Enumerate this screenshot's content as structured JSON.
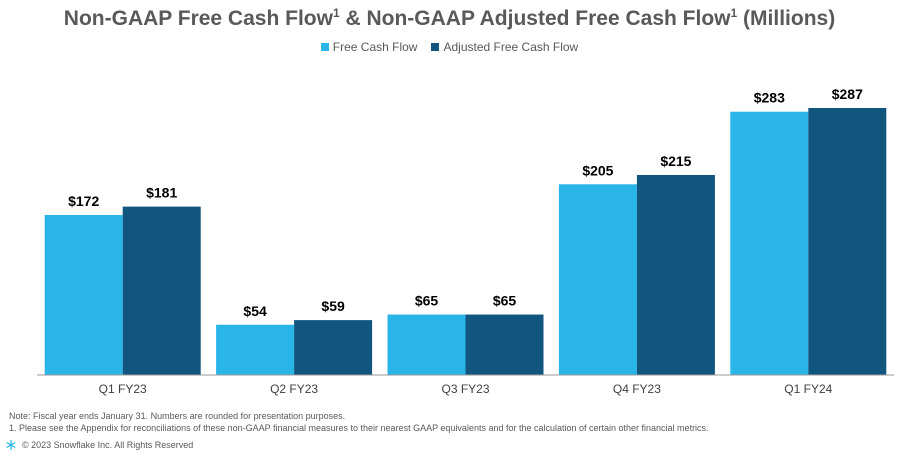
{
  "title": {
    "part1": "Non-GAAP Free Cash Flow",
    "sup1": "1",
    "part2": " & Non-GAAP Adjusted Free Cash Flow",
    "sup2": "1",
    "part3": " (Millions)"
  },
  "colors": {
    "series1": "#29B5E8",
    "series2": "#11567F",
    "axis": "#999999"
  },
  "chart_data": {
    "type": "bar",
    "categories": [
      "Q1 FY23",
      "Q2 FY23",
      "Q3 FY23",
      "Q4 FY23",
      "Q1 FY24"
    ],
    "series": [
      {
        "name": "Free Cash Flow",
        "values": [
          172,
          54,
          65,
          205,
          283
        ],
        "labels": [
          "$172",
          "$54",
          "$65",
          "$205",
          "$283"
        ]
      },
      {
        "name": "Adjusted Free Cash Flow",
        "values": [
          181,
          59,
          65,
          215,
          287
        ],
        "labels": [
          "$181",
          "$59",
          "$65",
          "$215",
          "$287"
        ]
      }
    ],
    "ylim": [
      0,
      287
    ],
    "grid": false,
    "legend": "top"
  },
  "notes": {
    "line1": "Note: Fiscal year ends January 31. Numbers are rounded for presentation purposes.",
    "line2": "1.  Please see the Appendix for reconciliations of these non-GAAP financial measures to their nearest GAAP equivalents and for the calculation of certain other financial metrics."
  },
  "footer": {
    "copyright": "© 2023 Snowflake Inc. All Rights Reserved",
    "logo_icon": "snowflake-icon"
  }
}
